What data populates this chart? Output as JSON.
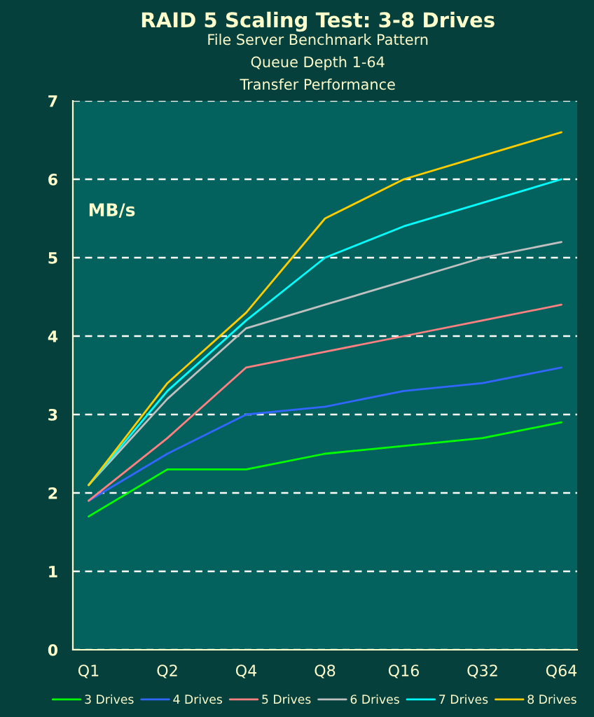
{
  "chart_data": {
    "type": "line",
    "title": "RAID 5 Scaling Test: 3-8 Drives",
    "subtitle": "File Server Benchmark Pattern\nQueue Depth 1-64\nTransfer Performance",
    "ylabel": "MB/s",
    "categories": [
      "Q1",
      "Q2",
      "Q4",
      "Q8",
      "Q16",
      "Q32",
      "Q64"
    ],
    "series": [
      {
        "name": "3 Drives",
        "color": "#00ff00",
        "values": [
          1.7,
          2.3,
          2.3,
          2.5,
          2.6,
          2.7,
          2.9
        ]
      },
      {
        "name": "4 Drives",
        "color": "#3366ff",
        "values": [
          1.9,
          2.5,
          3.0,
          3.1,
          3.3,
          3.4,
          3.6
        ]
      },
      {
        "name": "5 Drives",
        "color": "#ff8080",
        "values": [
          1.9,
          2.7,
          3.6,
          3.8,
          4.0,
          4.2,
          4.4
        ]
      },
      {
        "name": "6 Drives",
        "color": "#c0c0c0",
        "values": [
          2.1,
          3.2,
          4.1,
          4.4,
          4.7,
          5.0,
          5.2
        ]
      },
      {
        "name": "7 Drives",
        "color": "#00ffff",
        "values": [
          2.1,
          3.3,
          4.2,
          5.0,
          5.4,
          5.7,
          6.0
        ]
      },
      {
        "name": "8 Drives",
        "color": "#ffcc00",
        "values": [
          2.1,
          3.4,
          4.3,
          5.5,
          6.0,
          6.3,
          6.6
        ]
      }
    ],
    "ylim": [
      0,
      7
    ],
    "yticks": [
      0,
      1,
      2,
      3,
      4,
      5,
      6,
      7
    ],
    "grid": "y",
    "legend": "bottom",
    "marker": "none",
    "line_style": "solid"
  }
}
